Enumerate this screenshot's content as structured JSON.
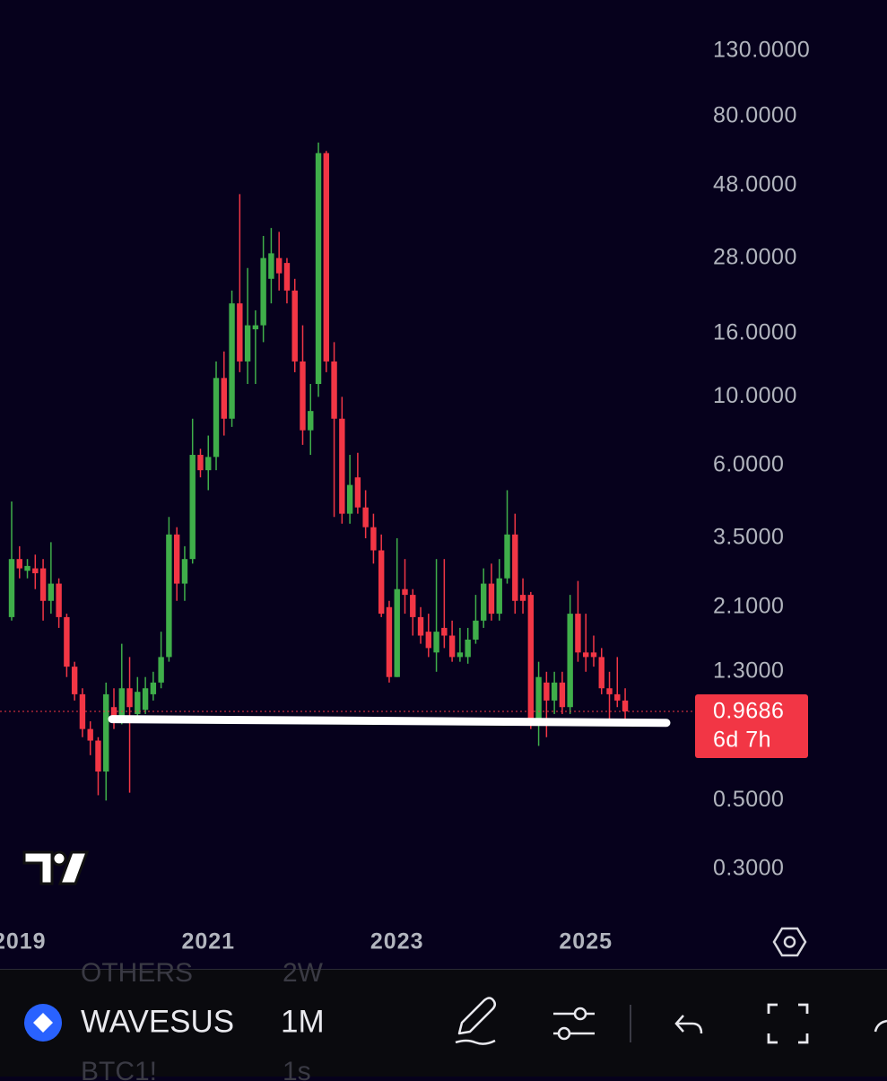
{
  "chart_data": {
    "type": "candlestick",
    "log_scale": true,
    "up_color": "#3fae4a",
    "down_color": "#f23645",
    "categories": [
      null,
      "2019",
      null,
      null,
      null,
      null,
      null,
      null,
      null,
      null,
      null,
      null,
      null,
      null,
      null,
      null,
      null,
      null,
      null,
      null,
      null,
      null,
      null,
      null,
      null,
      "2021",
      null,
      null,
      null,
      null,
      null,
      null,
      null,
      null,
      null,
      null,
      null,
      null,
      null,
      null,
      null,
      null,
      null,
      null,
      null,
      null,
      null,
      null,
      null,
      "2023",
      null,
      null,
      null,
      null,
      null,
      null,
      null,
      null,
      null,
      null,
      null,
      null,
      null,
      null,
      null,
      null,
      null,
      null,
      null,
      null,
      null,
      null,
      null,
      "2025",
      null,
      null,
      null,
      null,
      null
    ],
    "open": [
      1.95,
      3.0,
      2.75,
      2.8,
      2.8,
      2.2,
      2.5,
      1.95,
      1.35,
      1.1,
      0.85,
      0.78,
      0.62,
      1.0,
      0.92,
      1.15,
      0.95,
      0.98,
      1.1,
      1.2,
      1.45,
      3.6,
      2.5,
      3.0,
      6.5,
      5.8,
      6.4,
      11.5,
      8.5,
      20,
      13,
      16.5,
      17,
      24,
      28,
      27,
      22,
      13,
      7.8,
      11,
      61,
      13,
      8.5,
      4.2,
      5.5,
      4.4,
      3.8,
      3.2,
      2.1,
      1.25,
      2.4,
      2.3,
      1.95,
      1.75,
      1.5,
      1.8,
      1.7,
      1.45,
      1.45,
      1.65,
      1.9,
      2.5,
      2.0,
      2.6,
      3.6,
      2.3,
      2.3,
      0.9,
      1.2,
      1.05,
      1.2,
      1.0,
      2.0,
      1.5,
      1.5,
      1.45,
      1.15,
      1.1,
      1.05
    ],
    "high": [
      4.6,
      3.3,
      3.0,
      3.1,
      3.0,
      3.4,
      2.6,
      2.0,
      1.4,
      1.15,
      0.9,
      0.8,
      1.2,
      1.15,
      1.6,
      1.45,
      1.25,
      1.25,
      1.3,
      1.75,
      4.1,
      3.8,
      3.3,
      8.5,
      6.8,
      7.5,
      13,
      14,
      22,
      45,
      26,
      19,
      33,
      35,
      34,
      28,
      24,
      17,
      11,
      66,
      62,
      15,
      10,
      6.5,
      6.6,
      5.0,
      4.2,
      3.6,
      2.2,
      3.5,
      3.0,
      2.4,
      2.1,
      2.0,
      3.0,
      3.0,
      1.9,
      1.8,
      1.8,
      2.3,
      2.8,
      2.9,
      3.0,
      5.0,
      4.2,
      2.6,
      2.35,
      1.4,
      1.3,
      1.3,
      1.3,
      2.3,
      2.55,
      2.0,
      1.7,
      1.55,
      1.3,
      1.45,
      1.15
    ],
    "low": [
      1.9,
      2.6,
      2.6,
      2.4,
      1.9,
      2.0,
      1.8,
      1.25,
      1.05,
      0.8,
      0.7,
      0.52,
      0.5,
      0.85,
      0.88,
      0.53,
      0.92,
      0.95,
      1.05,
      1.15,
      1.4,
      2.2,
      2.2,
      2.9,
      5.5,
      5.0,
      5.8,
      7.5,
      8,
      12,
      11,
      11,
      15,
      20,
      22,
      20,
      12,
      7,
      6.5,
      10,
      12,
      4.1,
      3.9,
      3.9,
      4.2,
      3.5,
      2.9,
      1.95,
      1.2,
      1.25,
      2.0,
      1.7,
      1.6,
      1.45,
      1.3,
      1.55,
      1.4,
      1.4,
      1.38,
      1.6,
      1.8,
      1.9,
      1.9,
      2.5,
      2.0,
      2.0,
      0.85,
      0.75,
      0.8,
      0.95,
      0.95,
      0.95,
      1.4,
      1.3,
      1.35,
      1.1,
      0.88,
      1.0,
      0.88
    ],
    "close": [
      3.0,
      2.8,
      2.85,
      2.7,
      2.2,
      2.5,
      1.95,
      1.35,
      1.1,
      0.85,
      0.78,
      0.62,
      1.1,
      0.9,
      1.15,
      1.0,
      1.12,
      1.15,
      1.2,
      1.45,
      3.6,
      2.5,
      3.0,
      6.5,
      5.8,
      6.4,
      11.5,
      8.5,
      20,
      13,
      17,
      17,
      28,
      29,
      25,
      22,
      13,
      7.8,
      9,
      61,
      13,
      8.5,
      4.2,
      5.2,
      4.4,
      3.8,
      3.2,
      2.0,
      1.25,
      2.4,
      2.3,
      1.95,
      1.7,
      1.55,
      1.75,
      1.7,
      1.45,
      1.5,
      1.65,
      1.9,
      2.5,
      2.0,
      2.6,
      3.6,
      2.2,
      2.2,
      0.9,
      1.25,
      1.05,
      1.2,
      1.0,
      2.0,
      1.5,
      1.45,
      1.45,
      1.15,
      1.1,
      1.05,
      0.9686
    ],
    "ylim": [
      0.2,
      190
    ],
    "yticks": [
      {
        "value": 130,
        "label": "130.0000"
      },
      {
        "value": 80,
        "label": "80.0000"
      },
      {
        "value": 48,
        "label": "48.0000"
      },
      {
        "value": 28,
        "label": "28.0000"
      },
      {
        "value": 16,
        "label": "16.0000"
      },
      {
        "value": 10,
        "label": "10.0000"
      },
      {
        "value": 6,
        "label": "6.0000"
      },
      {
        "value": 3.5,
        "label": "3.5000"
      },
      {
        "value": 2.1,
        "label": "2.1000"
      },
      {
        "value": 1.3,
        "label": "1.3000"
      },
      {
        "value": 0.5,
        "label": "0.5000"
      },
      {
        "value": 0.3,
        "label": "0.3000"
      }
    ],
    "countdown": "6d 7h",
    "support_line": {
      "start": 0.915,
      "end": 0.89
    }
  },
  "toolbar": {
    "symbol": "WAVESUS",
    "interval": "1M",
    "ghost_rows": [
      [
        "OTHERS",
        "2W"
      ],
      [
        "BTC1!",
        "1s"
      ]
    ]
  }
}
